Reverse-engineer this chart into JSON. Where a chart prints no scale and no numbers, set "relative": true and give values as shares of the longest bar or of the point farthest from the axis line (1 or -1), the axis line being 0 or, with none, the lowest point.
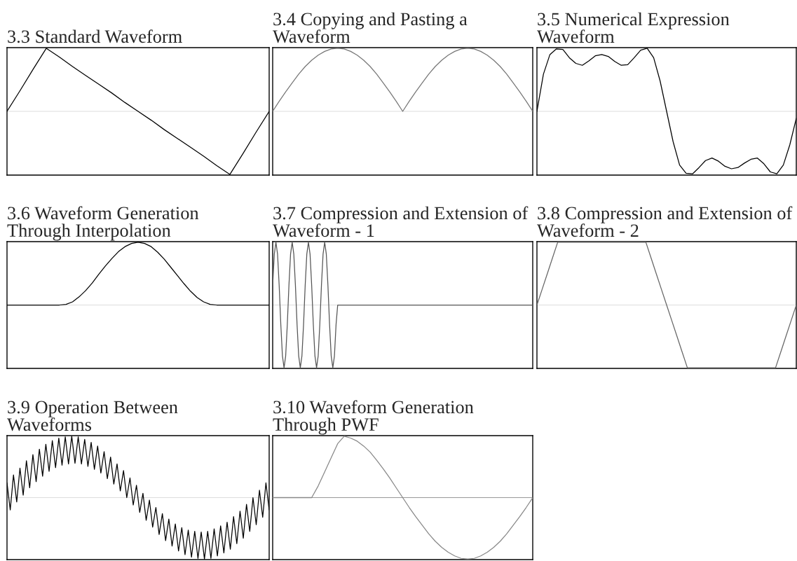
{
  "chart_data": [
    {
      "type": "line",
      "title": "3.3 Standard Waveform",
      "relative": true,
      "tick_labels": false,
      "categories": [
        null,
        null,
        null,
        null,
        null,
        null,
        null,
        null,
        null,
        null,
        null,
        null,
        null,
        null,
        null,
        null,
        null,
        null,
        null,
        null,
        null
      ],
      "series": [
        {
          "color": "#000000",
          "values": [
            0,
            0.33,
            0.67,
            1,
            0.86,
            0.71,
            0.57,
            0.43,
            0.29,
            0.14,
            0,
            -0.14,
            -0.29,
            -0.43,
            -0.57,
            -0.71,
            -0.86,
            -1,
            -0.67,
            -0.33,
            0
          ]
        }
      ],
      "ref_lines": [
        {
          "axis": "y",
          "value": 0,
          "color": "#dddddd"
        }
      ]
    },
    {
      "type": "line",
      "title": "3.4 Copying and Pasting a Waveform",
      "relative": true,
      "tick_labels": false,
      "categories": [
        null,
        null,
        null,
        null,
        null,
        null,
        null,
        null,
        null,
        null,
        null,
        null,
        null,
        null,
        null,
        null,
        null,
        null,
        null,
        null,
        null,
        null,
        null,
        null,
        null,
        null,
        null,
        null,
        null,
        null,
        null,
        null,
        null,
        null,
        null,
        null,
        null,
        null,
        null,
        null,
        null
      ],
      "series": [
        {
          "color": "#777777",
          "values": [
            0,
            0.16,
            0.31,
            0.45,
            0.59,
            0.71,
            0.81,
            0.89,
            0.95,
            0.99,
            1,
            0.99,
            0.95,
            0.89,
            0.81,
            0.71,
            0.59,
            0.45,
            0.31,
            0.16,
            0,
            0.16,
            0.31,
            0.45,
            0.59,
            0.71,
            0.81,
            0.89,
            0.95,
            0.99,
            1,
            0.99,
            0.95,
            0.89,
            0.81,
            0.71,
            0.59,
            0.45,
            0.31,
            0.16,
            0
          ]
        }
      ],
      "ref_lines": [
        {
          "axis": "y",
          "value": 0,
          "color": "#dddddd"
        }
      ]
    },
    {
      "type": "line",
      "title": "3.5 Numerical Expression Waveform",
      "relative": true,
      "tick_labels": false,
      "categories": [
        null,
        null,
        null,
        null,
        null,
        null,
        null,
        null,
        null,
        null,
        null,
        null,
        null,
        null,
        null,
        null,
        null,
        null,
        null,
        null,
        null,
        null,
        null,
        null,
        null,
        null,
        null,
        null,
        null,
        null,
        null,
        null,
        null,
        null,
        null,
        null,
        null,
        null,
        null,
        null,
        null
      ],
      "series": [
        {
          "color": "#000000",
          "values": [
            0,
            0.59,
            0.9,
            0.99,
            0.98,
            0.85,
            0.76,
            0.73,
            0.8,
            0.88,
            0.9,
            0.87,
            0.79,
            0.73,
            0.74,
            0.85,
            0.97,
            1,
            0.85,
            0.48,
            0,
            -0.48,
            -0.85,
            -0.98,
            -0.99,
            -0.89,
            -0.78,
            -0.74,
            -0.79,
            -0.87,
            -0.91,
            -0.89,
            -0.82,
            -0.76,
            -0.74,
            -0.83,
            -0.96,
            -0.99,
            -0.85,
            -0.53,
            -0.11
          ]
        }
      ],
      "ref_lines": [
        {
          "axis": "y",
          "value": 0,
          "color": "#dddddd"
        }
      ]
    },
    {
      "type": "line",
      "title": "3.6 Waveform Generation Through Interpolation",
      "relative": true,
      "tick_labels": false,
      "categories": [
        null,
        null,
        null,
        null,
        null,
        null,
        null,
        null,
        null,
        null,
        null,
        null,
        null,
        null,
        null,
        null,
        null,
        null,
        null,
        null,
        null,
        null,
        null,
        null,
        null,
        null,
        null,
        null,
        null,
        null,
        null,
        null,
        null,
        null,
        null,
        null,
        null,
        null,
        null,
        null,
        null
      ],
      "series": [
        {
          "color": "#000000",
          "values": [
            0,
            0,
            0,
            0,
            0,
            0,
            0,
            0,
            0,
            0.01,
            0.05,
            0.13,
            0.23,
            0.35,
            0.49,
            0.62,
            0.74,
            0.85,
            0.93,
            0.98,
            1,
            0.98,
            0.93,
            0.84,
            0.73,
            0.6,
            0.47,
            0.34,
            0.22,
            0.12,
            0.05,
            0.01,
            0,
            0,
            0,
            0,
            0,
            0,
            0,
            0,
            0
          ]
        }
      ],
      "ref_lines": [
        {
          "axis": "y",
          "value": 0,
          "color": "#dddddd"
        }
      ]
    },
    {
      "type": "line",
      "title": "3.7 Compression and Extension of Waveform - 1",
      "relative": true,
      "tick_labels": false,
      "categories": [
        null,
        null,
        null,
        null,
        null,
        null,
        null,
        null,
        null,
        null,
        null,
        null,
        null,
        null,
        null,
        null,
        null,
        null,
        null,
        null,
        null,
        null,
        null,
        null,
        null,
        null,
        null,
        null,
        null,
        null,
        null,
        null,
        null,
        null,
        null,
        null,
        null,
        null,
        null,
        null,
        null,
        null,
        null,
        null,
        null,
        null,
        null,
        null,
        null,
        null,
        null,
        null,
        null,
        null,
        null,
        null,
        null,
        null,
        null,
        null,
        null,
        null,
        null,
        null,
        null,
        null,
        null,
        null,
        null,
        null,
        null,
        null,
        null,
        null,
        null,
        null,
        null,
        null,
        null,
        null,
        null,
        null,
        null,
        null,
        null,
        null,
        null,
        null,
        null,
        null,
        null,
        null,
        null,
        null,
        null,
        null,
        null,
        null,
        null,
        null,
        null,
        null,
        null,
        null,
        null,
        null,
        null,
        null,
        null,
        null,
        null,
        null,
        null,
        null,
        null,
        null,
        null,
        null,
        null,
        null,
        null,
        null,
        null,
        null,
        null,
        null,
        null,
        null,
        null,
        null,
        null,
        null,
        null,
        null,
        null,
        null,
        null,
        null,
        null,
        null,
        null,
        null,
        null,
        null,
        null,
        null,
        null,
        null,
        null,
        null,
        null,
        null,
        null,
        null,
        null,
        null,
        null,
        null,
        null,
        null,
        null
      ],
      "series": [
        {
          "color": "#555555",
          "values": [
            0.31,
            0.81,
            1,
            0.81,
            0.31,
            -0.31,
            -0.81,
            -1,
            -0.81,
            -0.31,
            0.31,
            0.81,
            1,
            0.81,
            0.31,
            -0.31,
            -0.81,
            -1,
            -0.81,
            -0.31,
            0.31,
            0.81,
            1,
            0.81,
            0.31,
            -0.31,
            -0.81,
            -1,
            -0.81,
            -0.31,
            0.31,
            0.81,
            1,
            0.81,
            0.31,
            -0.31,
            -0.81,
            -1,
            -0.81,
            -0.31,
            0,
            0,
            0,
            0,
            0,
            0,
            0,
            0,
            0,
            0,
            0,
            0,
            0,
            0,
            0,
            0,
            0,
            0,
            0,
            0,
            0,
            0,
            0,
            0,
            0,
            0,
            0,
            0,
            0,
            0,
            0,
            0,
            0,
            0,
            0,
            0,
            0,
            0,
            0,
            0,
            0,
            0,
            0,
            0,
            0,
            0,
            0,
            0,
            0,
            0,
            0,
            0,
            0,
            0,
            0,
            0,
            0,
            0,
            0,
            0,
            0,
            0,
            0,
            0,
            0,
            0,
            0,
            0,
            0,
            0,
            0,
            0,
            0,
            0,
            0,
            0,
            0,
            0,
            0,
            0,
            0,
            0,
            0,
            0,
            0,
            0,
            0,
            0,
            0,
            0,
            0,
            0,
            0,
            0,
            0,
            0,
            0,
            0,
            0,
            0,
            0,
            0,
            0,
            0,
            0,
            0,
            0,
            0,
            0,
            0,
            0,
            0,
            0,
            0,
            0,
            0,
            0,
            0,
            0,
            0,
            0
          ]
        }
      ],
      "ref_lines": [
        {
          "axis": "y",
          "value": 0,
          "color": "#dddddd"
        }
      ]
    },
    {
      "type": "line",
      "title": "3.8 Compression and Extension of Waveform - 2",
      "relative": true,
      "tick_labels": false,
      "categories": [
        null,
        null,
        null,
        null,
        null,
        null,
        null,
        null,
        null,
        null,
        null,
        null,
        null,
        null,
        null,
        null,
        null,
        null,
        null,
        null,
        null,
        null,
        null,
        null,
        null,
        null,
        null,
        null,
        null,
        null,
        null,
        null,
        null,
        null,
        null,
        null,
        null,
        null,
        null,
        null,
        null,
        null,
        null,
        null,
        null,
        null,
        null,
        null,
        null,
        null,
        null
      ],
      "series": [
        {
          "color": "#666666",
          "values": [
            0,
            0.25,
            0.5,
            0.75,
            1,
            1,
            1,
            1,
            1,
            1,
            1,
            1,
            1,
            1,
            1,
            1,
            1,
            1,
            1,
            1,
            1,
            1,
            0.75,
            0.5,
            0.25,
            0,
            -0.25,
            -0.5,
            -0.75,
            -1,
            -1,
            -1,
            -1,
            -1,
            -1,
            -1,
            -1,
            -1,
            -1,
            -1,
            -1,
            -1,
            -1,
            -1,
            -1,
            -1,
            -1,
            -0.75,
            -0.5,
            -0.25,
            0
          ]
        }
      ],
      "ref_lines": [
        {
          "axis": "y",
          "value": 0,
          "color": "#dddddd"
        }
      ]
    },
    {
      "type": "line",
      "title": "3.9 Operation Between Waveforms",
      "relative": true,
      "tick_labels": false,
      "categories": [
        null,
        null,
        null,
        null,
        null,
        null,
        null,
        null,
        null,
        null,
        null,
        null,
        null,
        null,
        null,
        null,
        null,
        null,
        null,
        null,
        null,
        null,
        null,
        null,
        null,
        null,
        null,
        null,
        null,
        null,
        null,
        null,
        null,
        null,
        null,
        null,
        null,
        null,
        null,
        null,
        null,
        null,
        null,
        null,
        null,
        null,
        null,
        null,
        null,
        null,
        null,
        null,
        null,
        null,
        null,
        null,
        null,
        null,
        null,
        null,
        null,
        null,
        null,
        null,
        null,
        null,
        null,
        null,
        null,
        null,
        null,
        null,
        null,
        null,
        null,
        null,
        null,
        null,
        null,
        null,
        null,
        null
      ],
      "series": [
        {
          "color": "#000000",
          "values": [
            0.24,
            -0.2,
            0.37,
            -0.07,
            0.48,
            0.04,
            0.6,
            0.16,
            0.7,
            0.26,
            0.79,
            0.35,
            0.87,
            0.43,
            0.93,
            0.49,
            0.97,
            0.53,
            0.99,
            0.55,
            1,
            0.56,
            0.99,
            0.55,
            0.95,
            0.51,
            0.9,
            0.46,
            0.84,
            0.4,
            0.75,
            0.31,
            0.66,
            0.22,
            0.55,
            0.11,
            0.44,
            0,
            0.32,
            -0.12,
            0.2,
            -0.24,
            0.07,
            -0.37,
            -0.04,
            -0.48,
            -0.16,
            -0.6,
            -0.26,
            -0.7,
            -0.35,
            -0.79,
            -0.43,
            -0.87,
            -0.49,
            -0.93,
            -0.53,
            -0.97,
            -0.55,
            -0.99,
            -0.56,
            -1,
            -0.55,
            -0.99,
            -0.51,
            -0.95,
            -0.46,
            -0.9,
            -0.4,
            -0.84,
            -0.31,
            -0.75,
            -0.22,
            -0.66,
            -0.11,
            -0.55,
            0,
            -0.44,
            0.12,
            -0.32,
            0.24,
            -0.2
          ]
        }
      ],
      "ref_lines": [
        {
          "axis": "y",
          "value": 0,
          "color": "#dddddd"
        }
      ]
    },
    {
      "type": "line",
      "title": "3.10 Waveform Generation Through PWF",
      "relative": true,
      "tick_labels": false,
      "categories": [
        null,
        null,
        null,
        null,
        null,
        null,
        null,
        null,
        null,
        null,
        null,
        null,
        null,
        null,
        null,
        null,
        null,
        null,
        null,
        null,
        null,
        null,
        null,
        null,
        null,
        null,
        null,
        null,
        null,
        null,
        null,
        null,
        null,
        null,
        null,
        null,
        null,
        null,
        null,
        null,
        null
      ],
      "series": [
        {
          "color": "#888888",
          "values": [
            0,
            0,
            0,
            0,
            0,
            0,
            0,
            0.19,
            0.42,
            0.65,
            0.88,
            1,
            0.97,
            0.92,
            0.84,
            0.74,
            0.61,
            0.47,
            0.32,
            0.16,
            0,
            -0.16,
            -0.31,
            -0.45,
            -0.59,
            -0.71,
            -0.81,
            -0.89,
            -0.95,
            -0.99,
            -1,
            -0.99,
            -0.95,
            -0.89,
            -0.81,
            -0.71,
            -0.59,
            -0.45,
            -0.31,
            -0.16,
            0
          ]
        }
      ],
      "ref_lines": [
        {
          "axis": "y",
          "value": 0,
          "color": "#999999"
        }
      ]
    }
  ]
}
